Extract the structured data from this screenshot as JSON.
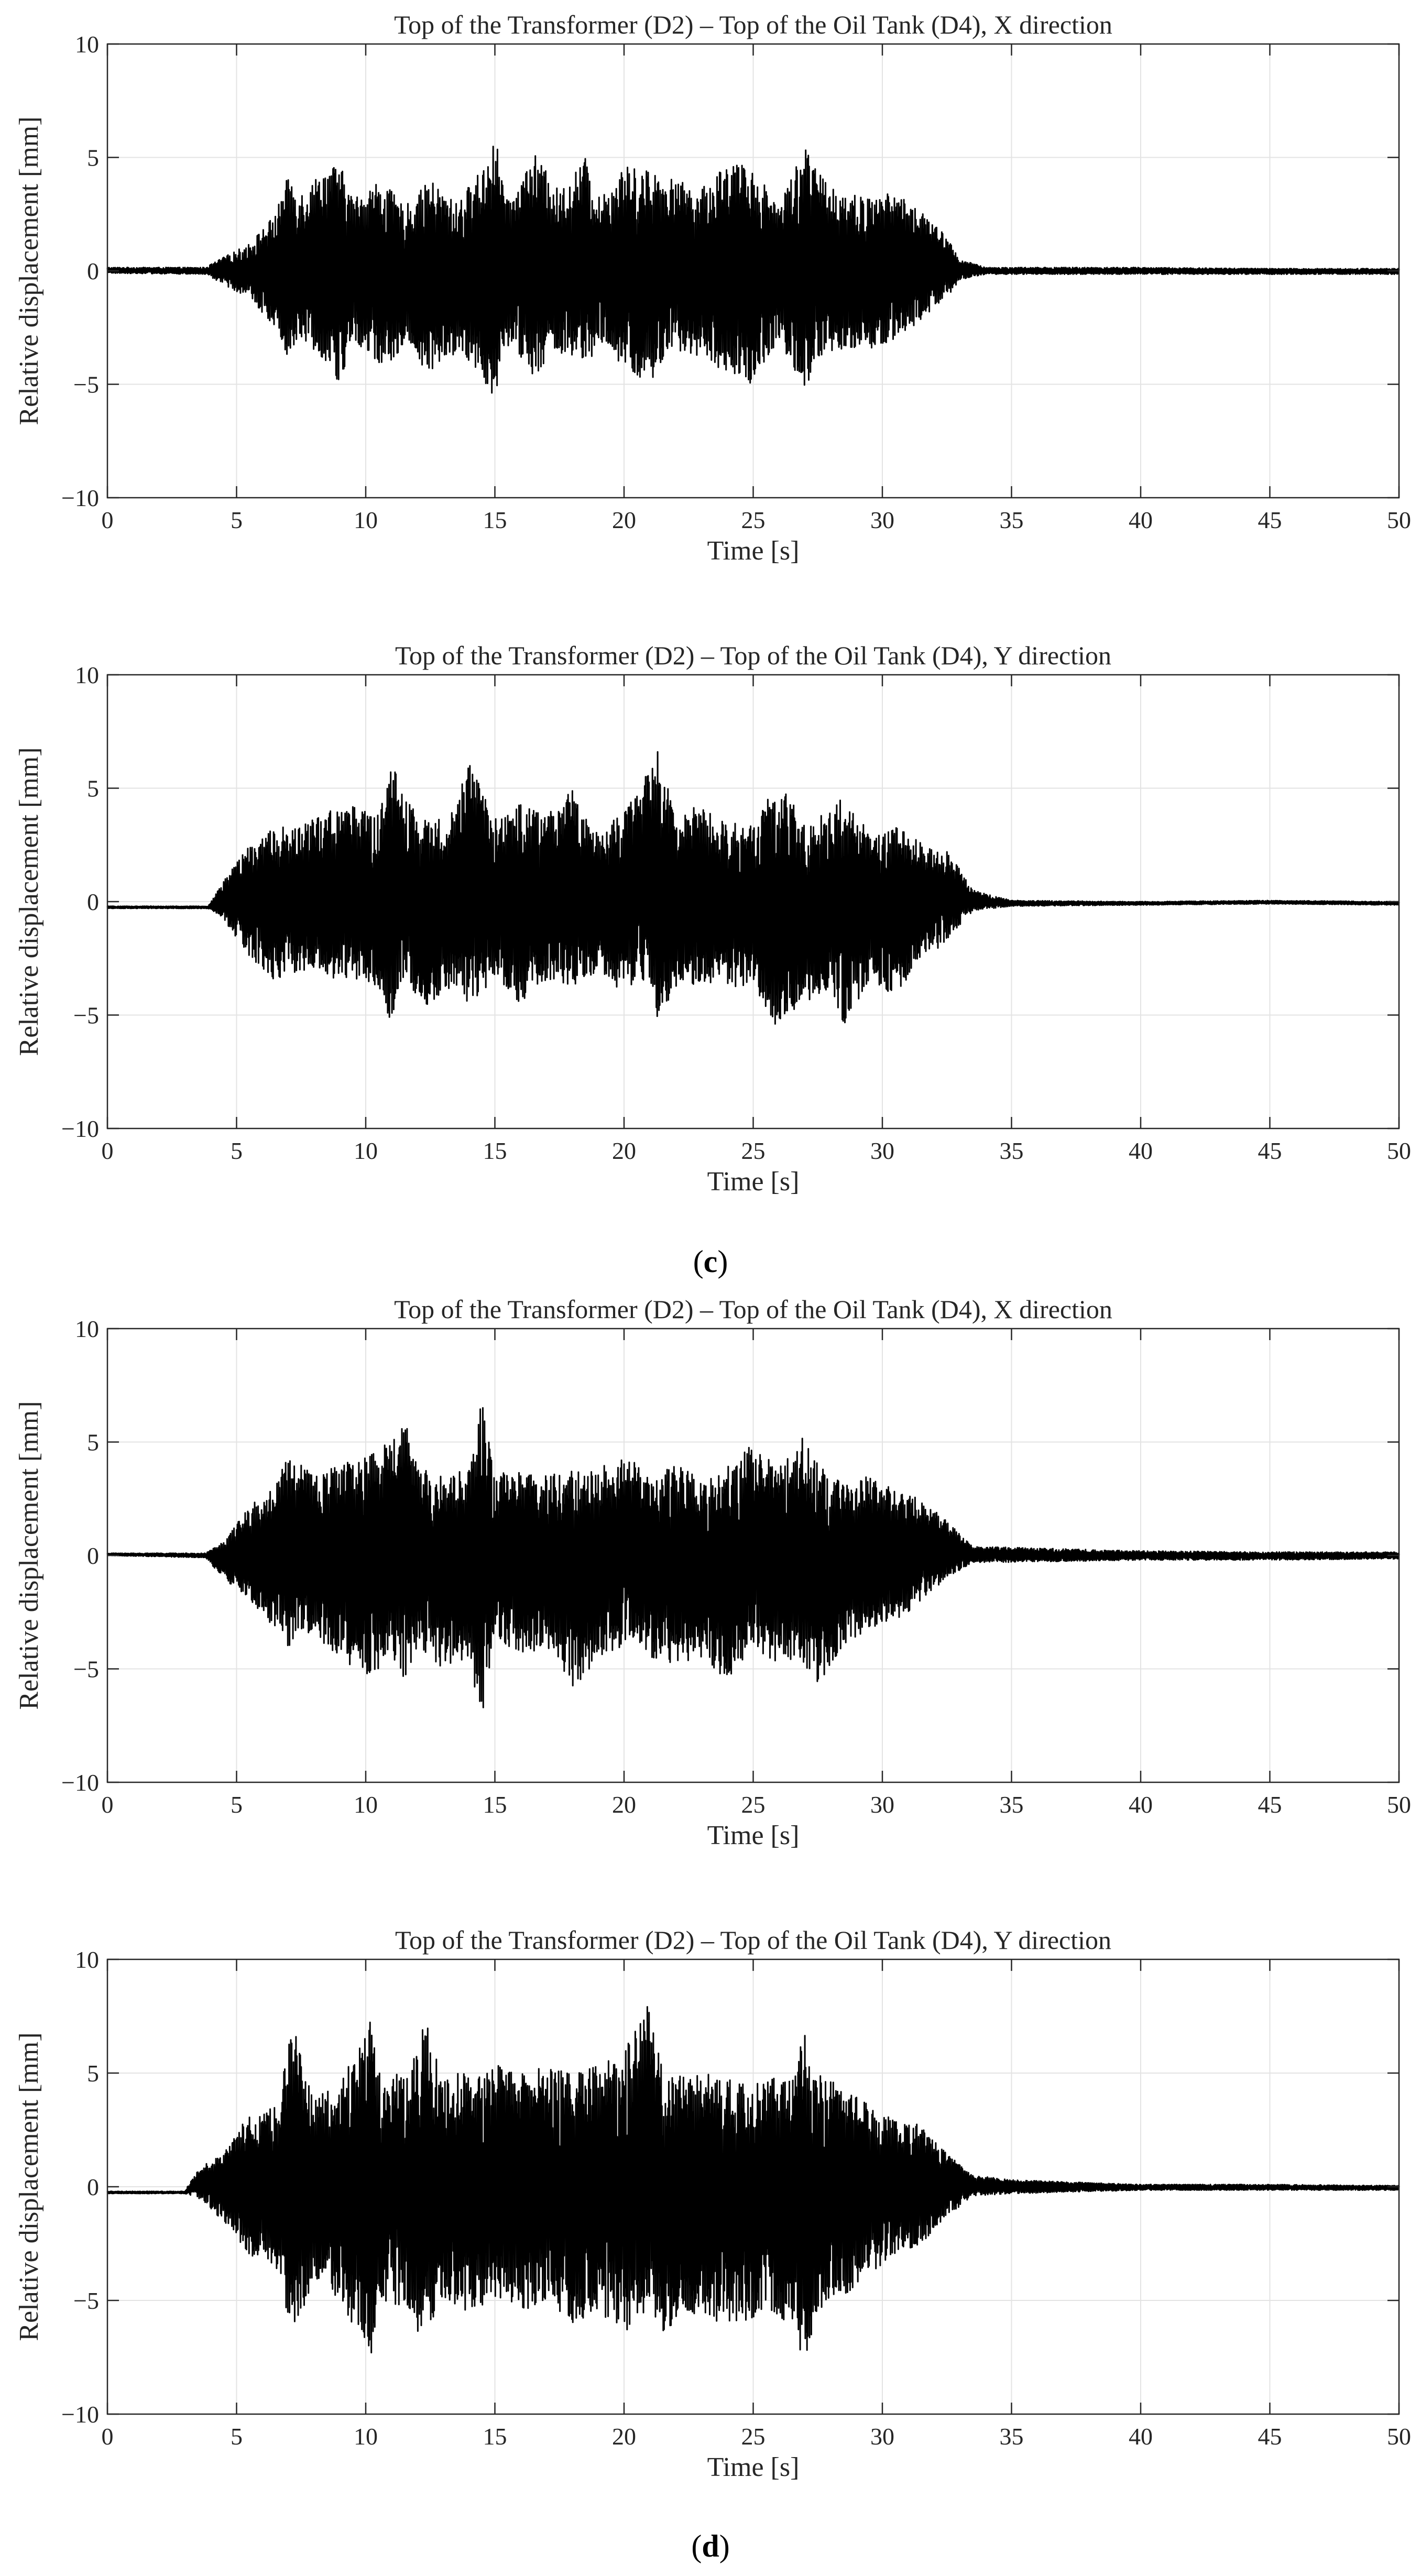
{
  "figure": {
    "captions": [
      {
        "open": "(",
        "letter": "c",
        "close": ")"
      },
      {
        "open": "(",
        "letter": "d",
        "close": ")"
      }
    ]
  },
  "chart_data": [
    {
      "type": "line",
      "title": "Top of the Transformer (D2) – Top of the Oil Tank (D4), X direction",
      "xlabel": "Time [s]",
      "ylabel": "Relative displacement [mm]",
      "xlim": [
        0,
        50
      ],
      "ylim": [
        -10,
        10
      ],
      "xticks": [
        0,
        5,
        10,
        15,
        20,
        25,
        30,
        35,
        40,
        45,
        50
      ],
      "yticks": [
        -10,
        -5,
        0,
        5,
        10
      ],
      "ytick_labels": [
        "−10",
        "−5",
        "0",
        "5",
        "10"
      ],
      "grid": true,
      "line_color": "#000000",
      "series": [
        {
          "values": {
            "t": [
              0,
              3.8,
              4.5,
              5.5,
              6.5,
              7,
              7.5,
              8.5,
              9,
              9.5,
              10.5,
              11,
              11.5,
              12.5,
              13.5,
              14.5,
              15,
              15.5,
              16.5,
              17.5,
              18.5,
              19,
              20,
              21,
              22,
              23,
              24,
              25,
              26,
              27,
              27.5,
              28.5,
              29.5,
              30.5,
              31.5,
              32.5,
              33,
              34,
              40,
              45,
              50
            ],
            "upper": [
              0.15,
              0.15,
              0.6,
              1.2,
              2.5,
              4.2,
              3.5,
              4.6,
              4.7,
              3.2,
              4.0,
              3.5,
              2.8,
              4.0,
              3.0,
              4.5,
              6.0,
              3.0,
              5.2,
              3.5,
              5.0,
              3.2,
              4.6,
              4.5,
              4.0,
              3.6,
              4.9,
              4.5,
              3.0,
              5.6,
              4.3,
              3.5,
              3.2,
              3.5,
              2.6,
              1.5,
              0.5,
              0.15,
              0.15,
              0.1,
              0.1
            ],
            "lower": [
              -0.1,
              -0.15,
              -0.6,
              -1.2,
              -2.5,
              -3.8,
              -3.0,
              -4.0,
              -5.2,
              -3.0,
              -4.2,
              -4.0,
              -3.2,
              -4.6,
              -3.6,
              -4.5,
              -6.1,
              -3.3,
              -4.6,
              -3.6,
              -4.5,
              -3.2,
              -4.4,
              -5.0,
              -3.5,
              -3.8,
              -4.5,
              -5.0,
              -3.0,
              -5.3,
              -4.2,
              -3.5,
              -3.5,
              -3.0,
              -2.2,
              -1.2,
              -0.4,
              -0.15,
              -0.15,
              -0.15,
              -0.15
            ]
          }
        }
      ]
    },
    {
      "type": "line",
      "title": "Top of the Transformer (D2) – Top of the Oil Tank (D4), Y direction",
      "xlabel": "Time [s]",
      "ylabel": "Relative displacement [mm]",
      "xlim": [
        0,
        50
      ],
      "ylim": [
        -10,
        10
      ],
      "xticks": [
        0,
        5,
        10,
        15,
        20,
        25,
        30,
        35,
        40,
        45,
        50
      ],
      "yticks": [
        -10,
        -5,
        0,
        5,
        10
      ],
      "ytick_labels": [
        "−10",
        "−5",
        "0",
        "5",
        "10"
      ],
      "grid": true,
      "line_color": "#000000",
      "series": [
        {
          "values": {
            "t": [
              0,
              3.9,
              4.5,
              5.5,
              6.5,
              7.5,
              8.5,
              9.5,
              10.5,
              11,
              11.5,
              12.5,
              13.5,
              14,
              15,
              16,
              17,
              18,
              19,
              20,
              21,
              21.3,
              22,
              23,
              24,
              25,
              26,
              27,
              28,
              28.5,
              29.5,
              30.5,
              31.5,
              32.5,
              33.5,
              35,
              40,
              45,
              50
            ],
            "upper": [
              -0.2,
              -0.2,
              0.9,
              2.5,
              3.3,
              3.3,
              4.0,
              4.2,
              3.8,
              6.2,
              4.5,
              3.5,
              4.4,
              6.1,
              3.8,
              4.3,
              3.8,
              4.9,
              3.0,
              4.0,
              6.0,
              6.6,
              4.0,
              4.2,
              3.5,
              3.4,
              5.4,
              3.5,
              4.0,
              4.7,
              3.0,
              3.3,
              2.6,
              2.3,
              0.5,
              0.05,
              0.0,
              0.05,
              0.0
            ],
            "lower": [
              -0.3,
              -0.3,
              -0.8,
              -2.5,
              -3.5,
              -3.0,
              -3.3,
              -3.7,
              -3.8,
              -5.4,
              -3.5,
              -4.8,
              -3.8,
              -4.5,
              -3.4,
              -4.6,
              -3.5,
              -3.8,
              -3.2,
              -4.0,
              -3.5,
              -5.5,
              -4.0,
              -3.5,
              -3.8,
              -3.7,
              -5.8,
              -4.5,
              -3.8,
              -5.5,
              -3.5,
              -4.2,
              -2.5,
              -1.8,
              -0.4,
              -0.2,
              -0.15,
              -0.1,
              -0.15
            ]
          }
        }
      ]
    },
    {
      "type": "line",
      "title": "Top of the Transformer (D2) – Top of the Oil Tank (D4), X direction",
      "xlabel": "Time [s]",
      "ylabel": "Relative displacement [mm]",
      "xlim": [
        0,
        50
      ],
      "ylim": [
        -10,
        10
      ],
      "xticks": [
        0,
        5,
        10,
        15,
        20,
        25,
        30,
        35,
        40,
        45,
        50
      ],
      "yticks": [
        -10,
        -5,
        0,
        5,
        10
      ],
      "ytick_labels": [
        "−10",
        "−5",
        "0",
        "5",
        "10"
      ],
      "grid": true,
      "line_color": "#000000",
      "series": [
        {
          "values": {
            "t": [
              0,
              3.8,
              4.5,
              5.5,
              6.5,
              7,
              8,
              9,
              10,
              11,
              11.5,
              12,
              13,
              14,
              14.5,
              15,
              16,
              17,
              18,
              19,
              20,
              21,
              22,
              23,
              24,
              25,
              26,
              27,
              27.5,
              28.5,
              29.5,
              30.5,
              31.5,
              32.5,
              33.5,
              35,
              40,
              45,
              50
            ],
            "upper": [
              0.1,
              0.1,
              0.6,
              2.2,
              3.0,
              4.5,
              3.5,
              4.0,
              4.5,
              5.0,
              6.3,
              4.0,
              3.5,
              3.8,
              6.9,
              3.5,
              4.0,
              3.5,
              4.0,
              4.0,
              4.5,
              3.5,
              4.0,
              3.5,
              4.0,
              5.0,
              4.0,
              5.3,
              4.0,
              3.2,
              3.5,
              3.0,
              2.5,
              1.5,
              0.4,
              0.35,
              0.2,
              0.15,
              0.15
            ],
            "lower": [
              0.0,
              -0.1,
              -1.0,
              -2.0,
              -3.2,
              -4.0,
              -3.5,
              -4.5,
              -5.5,
              -4.5,
              -5.6,
              -4.0,
              -5.0,
              -4.5,
              -7.5,
              -3.5,
              -4.5,
              -4.0,
              -6.0,
              -4.5,
              -4.0,
              -4.5,
              -4.8,
              -4.5,
              -5.5,
              -4.0,
              -5.0,
              -4.8,
              -5.8,
              -4.0,
              -3.2,
              -3.0,
              -2.0,
              -1.0,
              -0.3,
              -0.3,
              -0.2,
              -0.2,
              -0.15
            ]
          }
        }
      ]
    },
    {
      "type": "line",
      "title": "Top of the Transformer (D2) – Top of the Oil Tank (D4), Y direction",
      "xlabel": "Time [s]",
      "ylabel": "Relative displacement [mm]",
      "xlim": [
        0,
        50
      ],
      "ylim": [
        -10,
        10
      ],
      "xticks": [
        0,
        5,
        10,
        15,
        20,
        25,
        30,
        35,
        40,
        45,
        50
      ],
      "yticks": [
        -10,
        -5,
        0,
        5,
        10
      ],
      "ytick_labels": [
        "−10",
        "−5",
        "0",
        "5",
        "10"
      ],
      "grid": true,
      "line_color": "#000000",
      "series": [
        {
          "values": {
            "t": [
              0,
              3.0,
              3.5,
              4.5,
              5.5,
              6.5,
              7.2,
              8,
              9,
              10.2,
              10.5,
              11.5,
              12.3,
              13,
              14,
              15,
              16,
              17,
              18,
              19,
              20,
              21,
              21.5,
              22.5,
              23.5,
              24.5,
              25.5,
              26.5,
              27,
              27.5,
              28.5,
              29.5,
              30.5,
              31.5,
              32.5,
              33.5,
              35,
              40,
              45,
              50
            ],
            "upper": [
              -0.2,
              -0.2,
              0.8,
              1.5,
              3.2,
              3.5,
              7.2,
              4.0,
              4.5,
              7.6,
              5.0,
              5.0,
              7.3,
              5.0,
              5.0,
              5.5,
              5.0,
              5.5,
              5.0,
              5.3,
              6.0,
              8.3,
              5.0,
              5.0,
              5.0,
              4.5,
              4.6,
              5.3,
              6.8,
              5.0,
              4.4,
              3.6,
              3.0,
              2.7,
              1.5,
              0.5,
              0.3,
              0.1,
              0.1,
              0.05
            ],
            "lower": [
              -0.3,
              -0.3,
              -0.5,
              -1.5,
              -3.0,
              -3.5,
              -6.7,
              -4.0,
              -5.0,
              -7.6,
              -5.0,
              -5.5,
              -7.0,
              -5.0,
              -5.5,
              -5.0,
              -5.5,
              -5.0,
              -6.0,
              -5.5,
              -6.5,
              -5.5,
              -6.5,
              -5.5,
              -6.0,
              -6.0,
              -5.5,
              -6.0,
              -7.9,
              -5.5,
              -4.8,
              -3.8,
              -3.0,
              -2.5,
              -1.3,
              -0.4,
              -0.3,
              -0.15,
              -0.15,
              -0.15
            ]
          }
        }
      ]
    }
  ]
}
